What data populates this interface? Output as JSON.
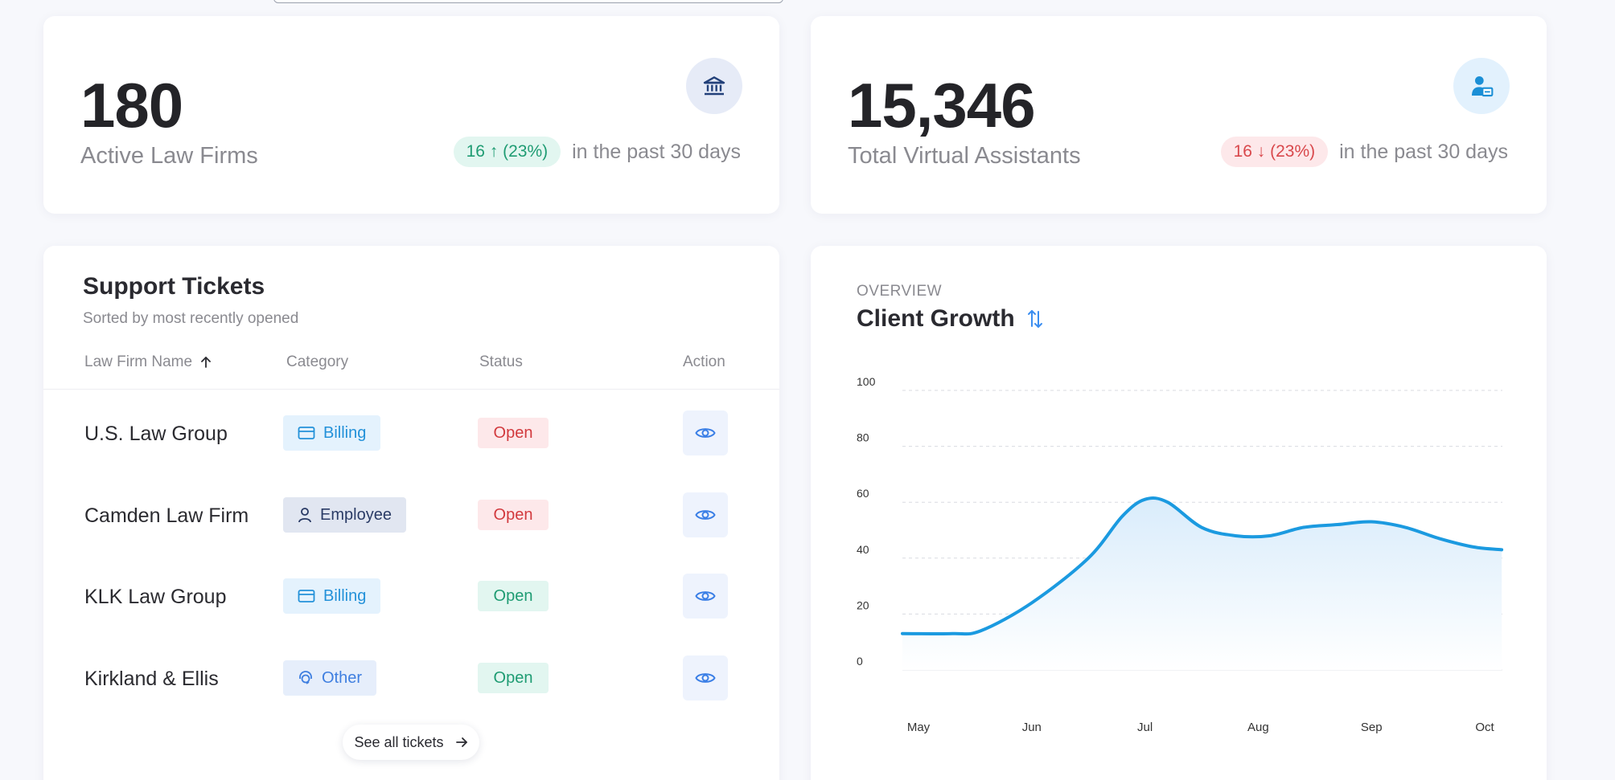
{
  "stats": [
    {
      "value": "180",
      "label": "Active Law Firms",
      "icon": "bank-icon",
      "trend": "16 ↑ (23%)",
      "trend_direction": "up",
      "trend_text": "in the past 30 days"
    },
    {
      "value": "15,346",
      "label": "Total Virtual Assistants",
      "icon": "user-id-icon",
      "trend": "16 ↓ (23%)",
      "trend_direction": "down",
      "trend_text": "in the past 30 days"
    }
  ],
  "tickets": {
    "title": "Support Tickets",
    "subtitle": "Sorted by most recently opened",
    "columns": [
      "Law Firm Name",
      "Category",
      "Status",
      "Action"
    ],
    "rows": [
      {
        "firm": "U.S. Law Group",
        "category": "Billing",
        "status": "Open",
        "status_color": "red"
      },
      {
        "firm": "Camden Law Firm",
        "category": "Employee",
        "status": "Open",
        "status_color": "red"
      },
      {
        "firm": "KLK Law Group",
        "category": "Billing",
        "status": "Open",
        "status_color": "green"
      },
      {
        "firm": "Kirkland & Ellis",
        "category": "Other",
        "status": "Open",
        "status_color": "green"
      }
    ],
    "see_all_label": "See all tickets"
  },
  "chart": {
    "overline": "OVERVIEW",
    "title": "Client Growth"
  },
  "chart_data": {
    "type": "area",
    "title": "Client Growth",
    "x": [
      "May",
      "Jun",
      "Jul",
      "Aug",
      "Sep",
      "Oct"
    ],
    "ylim": [
      0,
      100
    ],
    "yticks": [
      0,
      20,
      40,
      60,
      80,
      100
    ],
    "grid": true,
    "series": [
      {
        "points": [
          [
            0.0,
            13
          ],
          [
            0.3,
            13
          ],
          [
            0.55,
            14
          ],
          [
            1.0,
            24
          ],
          [
            1.5,
            40
          ],
          [
            1.8,
            55
          ],
          [
            2.0,
            61
          ],
          [
            2.2,
            60
          ],
          [
            2.5,
            51
          ],
          [
            2.8,
            48
          ],
          [
            3.1,
            48
          ],
          [
            3.4,
            51
          ],
          [
            3.7,
            52
          ],
          [
            4.0,
            53
          ],
          [
            4.3,
            51
          ],
          [
            4.6,
            47
          ],
          [
            4.9,
            44
          ],
          [
            5.15,
            43
          ]
        ]
      }
    ],
    "colors": {
      "line": "#1b9ae0",
      "fill_top": "#d9ecfb",
      "fill_bottom": "#ffffff"
    }
  }
}
